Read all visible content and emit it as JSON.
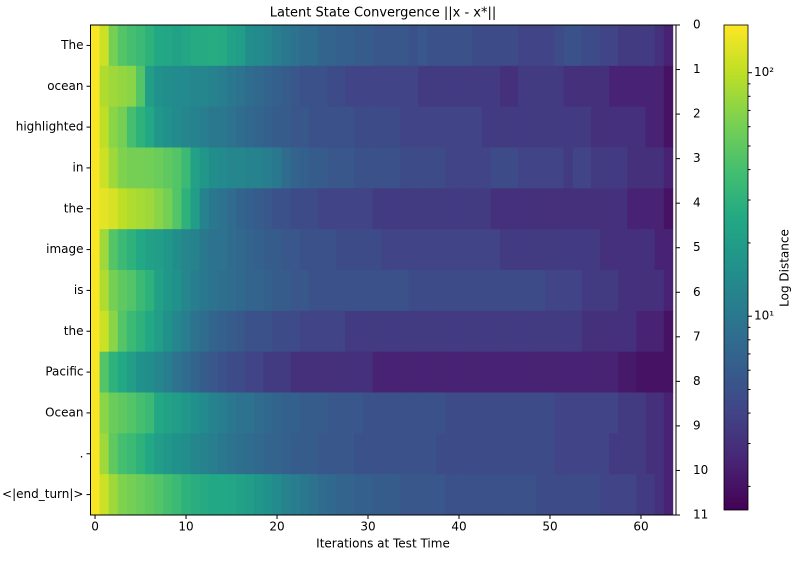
{
  "chart_data": {
    "type": "heatmap",
    "title": "Latent State Convergence ||x - x*||",
    "x_label": "Iterations at Test Time",
    "colorbar_label": "Log Distance",
    "colormap": "viridis",
    "log_scale": true,
    "categories": [
      "The",
      "ocean",
      "highlighted",
      "in",
      "the",
      "image",
      "is",
      "the",
      "Pacific",
      "Ocean",
      ".",
      "<|end_turn|>"
    ],
    "xlim": [
      -0.5,
      63.85
    ],
    "xticks": [
      0,
      10,
      20,
      30,
      40,
      50,
      60
    ],
    "y2lim": [
      0,
      11
    ],
    "y2ticks": [
      0,
      1,
      2,
      3,
      4,
      5,
      6,
      7,
      8,
      9,
      10,
      11
    ],
    "clim": [
      1.6,
      157
    ],
    "cticks": [
      {
        "value": 10,
        "label": "10¹"
      },
      {
        "value": 100,
        "label": "10²"
      }
    ],
    "cminor_ticks": [
      2,
      3,
      4,
      5,
      6,
      7,
      8,
      9,
      20,
      30,
      40,
      50,
      60,
      70,
      80,
      90
    ],
    "z": [
      [
        150,
        110,
        60,
        45,
        40,
        35,
        30,
        25,
        24,
        22,
        24,
        26,
        26,
        27,
        26,
        22,
        20,
        15,
        14,
        13,
        11,
        10,
        9,
        8,
        8,
        7,
        7,
        6.5,
        6.5,
        6,
        6,
        5.5,
        5.5,
        5.5,
        5.5,
        5,
        5.5,
        5,
        5,
        5,
        5,
        5,
        4.5,
        4.5,
        4.5,
        4.5,
        4.5,
        4,
        4,
        4,
        4,
        4.5,
        5,
        5,
        4.5,
        4.5,
        4,
        4,
        3.5,
        3.5,
        3.5,
        3.5,
        3,
        2.5
      ],
      [
        150,
        90,
        80,
        75,
        70,
        45,
        20,
        16,
        15,
        14,
        14,
        13,
        13,
        12,
        11,
        10,
        9,
        8,
        7.5,
        7,
        6.5,
        6,
        5.5,
        5,
        5,
        5,
        4.5,
        4.5,
        4,
        4,
        4,
        4,
        4,
        4,
        4,
        4,
        3.5,
        3.5,
        3.5,
        3.5,
        3.5,
        3.5,
        3.5,
        3.5,
        3.5,
        3,
        3,
        3.5,
        3.5,
        3.5,
        3.5,
        3.5,
        3,
        3,
        3,
        3,
        3,
        2.5,
        2.5,
        2.5,
        2.5,
        2.5,
        2.5,
        2
      ],
      [
        150,
        100,
        70,
        60,
        40,
        30,
        25,
        18,
        16,
        14,
        13,
        12,
        11,
        10,
        10,
        9,
        8,
        7.5,
        7,
        6.5,
        6,
        6,
        5.5,
        5.5,
        5,
        5,
        5,
        5,
        5,
        4.5,
        4.5,
        4.5,
        4.5,
        4.5,
        4,
        4,
        4,
        4,
        4,
        4,
        4,
        4,
        4,
        3.5,
        3.5,
        3.5,
        3.5,
        3.5,
        3.5,
        3.5,
        3.5,
        3.5,
        3.5,
        3.5,
        3.5,
        3,
        3,
        3,
        3,
        3,
        3,
        2.5,
        2.5,
        2
      ],
      [
        150,
        110,
        80,
        65,
        60,
        60,
        58,
        55,
        50,
        45,
        35,
        22,
        18,
        15,
        14,
        13,
        13,
        12,
        12,
        11,
        10,
        8,
        7,
        6.5,
        6,
        6,
        5.5,
        5.5,
        5.5,
        5,
        5,
        5,
        5,
        5,
        4.5,
        4.5,
        4.5,
        4.5,
        4.5,
        4,
        4,
        4,
        4,
        4,
        4.5,
        4.5,
        4.5,
        4,
        4,
        4,
        4,
        4,
        3.5,
        4,
        4,
        3.5,
        3.5,
        3.5,
        3.5,
        3,
        3,
        3,
        3,
        2.5
      ],
      [
        150,
        130,
        120,
        100,
        90,
        85,
        80,
        70,
        60,
        45,
        30,
        20,
        12,
        10,
        9,
        8,
        7,
        6.5,
        6,
        5.5,
        5,
        5,
        4.5,
        4.5,
        4.5,
        4,
        4,
        4,
        4,
        4,
        4,
        3.5,
        3.5,
        3.5,
        3.5,
        3.5,
        3.5,
        3.5,
        3.5,
        3.5,
        3.5,
        3.5,
        3.5,
        3.5,
        3,
        3,
        3,
        3,
        3,
        3,
        3,
        3,
        3,
        3,
        3,
        3,
        3,
        3,
        3,
        2.5,
        2.5,
        2.5,
        2.5,
        2
      ],
      [
        150,
        80,
        45,
        35,
        30,
        25,
        22,
        20,
        18,
        15,
        13,
        12,
        10,
        9,
        9,
        8,
        7.5,
        7,
        6.5,
        6,
        6,
        5.5,
        5.5,
        5,
        5,
        5,
        5,
        4.5,
        4.5,
        4.5,
        4.5,
        4.5,
        4,
        4,
        4,
        4,
        4,
        4,
        4,
        4,
        4,
        4,
        4,
        4,
        4,
        3.5,
        3.5,
        3.5,
        3.5,
        3.5,
        3.5,
        3.5,
        3.5,
        3.5,
        3.5,
        3.5,
        3,
        3,
        3,
        3,
        3,
        3,
        2.5,
        2.5
      ],
      [
        150,
        90,
        60,
        50,
        45,
        35,
        30,
        22,
        18,
        16,
        13,
        11,
        10,
        9,
        8.5,
        8,
        7.5,
        7,
        7,
        6.5,
        6,
        6,
        5.5,
        5.5,
        5,
        5,
        5,
        5,
        5,
        5,
        5,
        5,
        5,
        5,
        5,
        4.5,
        4.5,
        4.5,
        4.5,
        4.5,
        4.5,
        4.5,
        4.5,
        4.5,
        4.5,
        4.5,
        4.5,
        4.5,
        4.5,
        4.5,
        4,
        4,
        4,
        4,
        3.5,
        3.5,
        3.5,
        3.5,
        3,
        3,
        3,
        3,
        3,
        2.5
      ],
      [
        150,
        110,
        70,
        45,
        35,
        30,
        25,
        20,
        16,
        13,
        11,
        9,
        8,
        7,
        6.5,
        6,
        5.5,
        5,
        5,
        5,
        4.5,
        4.5,
        4.5,
        4,
        4,
        4,
        4,
        4,
        3.5,
        3.5,
        3.5,
        3.5,
        3.5,
        3.5,
        3.5,
        3.5,
        3.5,
        3.5,
        3.5,
        3.5,
        3.5,
        3.5,
        3.5,
        3.5,
        3.5,
        3.5,
        3.5,
        3.5,
        3.5,
        3.5,
        3.5,
        3.5,
        3.5,
        3.5,
        3,
        3,
        3,
        3,
        3,
        3,
        2.5,
        2.5,
        2.5,
        2
      ],
      [
        150,
        45,
        30,
        25,
        20,
        16,
        15,
        13,
        11,
        9,
        8,
        7,
        6,
        5.5,
        5,
        4.5,
        4.5,
        4,
        4,
        3.5,
        3.5,
        3.5,
        3,
        3,
        3,
        3,
        3,
        3,
        3,
        3,
        3,
        2.5,
        2.5,
        2.5,
        2.5,
        2.5,
        2.5,
        2.5,
        2.5,
        2.5,
        2.5,
        2.5,
        2.5,
        2.5,
        2.5,
        2.5,
        2.5,
        2.5,
        2.5,
        2.5,
        2.5,
        2.5,
        2.5,
        2.5,
        2.5,
        2.5,
        2.5,
        2.5,
        2.2,
        2.2,
        2,
        2,
        2,
        2
      ],
      [
        150,
        70,
        55,
        50,
        45,
        40,
        35,
        25,
        22,
        20,
        18,
        16,
        14,
        12,
        11,
        10,
        9,
        9,
        8,
        7.5,
        7,
        6.5,
        6.5,
        6,
        6,
        6,
        5.5,
        5.5,
        5.5,
        5.5,
        5,
        5,
        5,
        5,
        5,
        5,
        5,
        5,
        5,
        4.5,
        4.5,
        4.5,
        4.5,
        4.5,
        4.5,
        4.5,
        4.5,
        4.5,
        4.5,
        4.5,
        4.5,
        4,
        4,
        4,
        4,
        4,
        4,
        4,
        3.5,
        3.5,
        3.5,
        3,
        3,
        2.5
      ],
      [
        150,
        80,
        50,
        40,
        35,
        30,
        25,
        20,
        18,
        16,
        15,
        13,
        12,
        11,
        10,
        9,
        8.5,
        8,
        7.5,
        7,
        7,
        6.5,
        6,
        6,
        6,
        5.5,
        5.5,
        5.5,
        5.5,
        5,
        5,
        5,
        5,
        5,
        5,
        5,
        5,
        5,
        4.5,
        4.5,
        4.5,
        4.5,
        4.5,
        4.5,
        4.5,
        4.5,
        4.5,
        4.5,
        4.5,
        4.5,
        4.5,
        4,
        4,
        4,
        4,
        4,
        4,
        3.5,
        3.5,
        3.5,
        3.5,
        3,
        3,
        2.5
      ],
      [
        150,
        110,
        80,
        65,
        60,
        55,
        50,
        45,
        40,
        35,
        30,
        28,
        26,
        25,
        25,
        24,
        22,
        20,
        18,
        16,
        14,
        12,
        11,
        10,
        9,
        8,
        7.5,
        7,
        7,
        6.5,
        6.5,
        6,
        6,
        6,
        5.5,
        5.5,
        5.5,
        5.5,
        5.5,
        5,
        5,
        5,
        5,
        5,
        5,
        5,
        5,
        5,
        5,
        4.5,
        4.5,
        4.5,
        4.5,
        4.5,
        4.5,
        4.5,
        4,
        4,
        4,
        4,
        3.5,
        3.5,
        3,
        2.5
      ]
    ]
  }
}
